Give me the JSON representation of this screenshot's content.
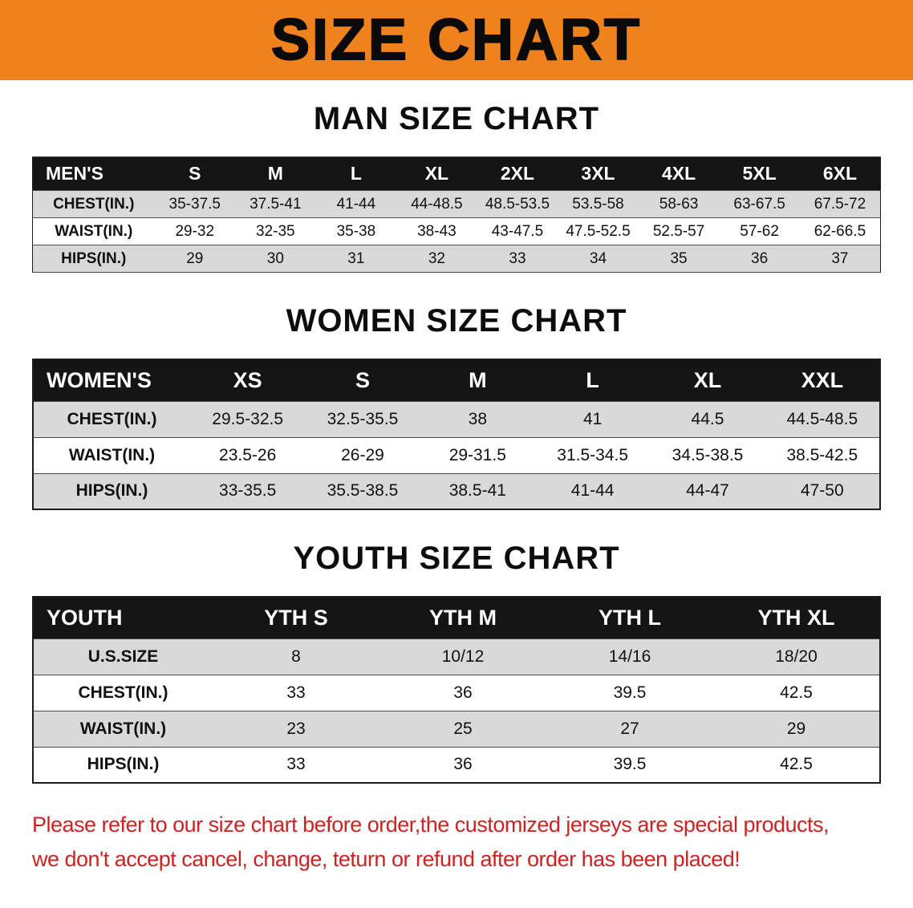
{
  "banner": {
    "title": "SIZE CHART"
  },
  "colors": {
    "banner_bg": "#f0821e",
    "header_bg": "#141414",
    "stripe": "#d9d9d9",
    "footer_text": "#cf2222"
  },
  "sections": [
    {
      "heading": "MAN SIZE CHART",
      "table": {
        "header": [
          "MEN'S",
          "S",
          "M",
          "L",
          "XL",
          "2XL",
          "3XL",
          "4XL",
          "5XL",
          "6XL"
        ],
        "rows": [
          [
            "CHEST(IN.)",
            "35-37.5",
            "37.5-41",
            "41-44",
            "44-48.5",
            "48.5-53.5",
            "53.5-58",
            "58-63",
            "63-67.5",
            "67.5-72"
          ],
          [
            "WAIST(IN.)",
            "29-32",
            "32-35",
            "35-38",
            "38-43",
            "43-47.5",
            "47.5-52.5",
            "52.5-57",
            "57-62",
            "62-66.5"
          ],
          [
            "HIPS(IN.)",
            "29",
            "30",
            "31",
            "32",
            "33",
            "34",
            "35",
            "36",
            "37"
          ]
        ]
      }
    },
    {
      "heading": "WOMEN SIZE CHART",
      "table": {
        "header": [
          "WOMEN'S",
          "XS",
          "S",
          "M",
          "L",
          "XL",
          "XXL"
        ],
        "rows": [
          [
            "CHEST(IN.)",
            "29.5-32.5",
            "32.5-35.5",
            "38",
            "41",
            "44.5",
            "44.5-48.5"
          ],
          [
            "WAIST(IN.)",
            "23.5-26",
            "26-29",
            "29-31.5",
            "31.5-34.5",
            "34.5-38.5",
            "38.5-42.5"
          ],
          [
            "HIPS(IN.)",
            "33-35.5",
            "35.5-38.5",
            "38.5-41",
            "41-44",
            "44-47",
            "47-50"
          ]
        ]
      }
    },
    {
      "heading": "YOUTH SIZE CHART",
      "table": {
        "header": [
          "YOUTH",
          "YTH S",
          "YTH M",
          "YTH L",
          "YTH XL"
        ],
        "rows": [
          [
            "U.S.SIZE",
            "8",
            "10/12",
            "14/16",
            "18/20"
          ],
          [
            "CHEST(IN.)",
            "33",
            "36",
            "39.5",
            "42.5"
          ],
          [
            "WAIST(IN.)",
            "23",
            "25",
            "27",
            "29"
          ],
          [
            "HIPS(IN.)",
            "33",
            "36",
            "39.5",
            "42.5"
          ]
        ]
      }
    }
  ],
  "footer": {
    "line1": "Please refer to our size chart before order,the customized jerseys are special products,",
    "line2": "we don't accept cancel, change, teturn or refund after order has been placed!"
  }
}
